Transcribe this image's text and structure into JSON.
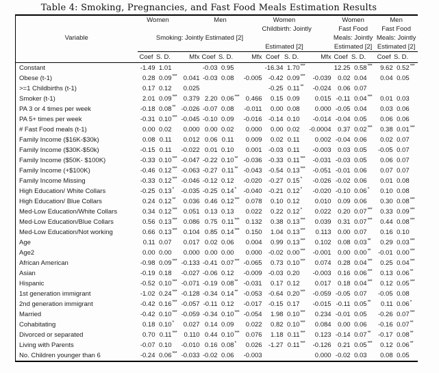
{
  "title": "Table 4: Smoking, Pregnancies, and Fast Food Meals Estimation Results",
  "table": {
    "variable_label": "Variable",
    "group_headers": {
      "women_smoking": "Women",
      "men_smoking": "Men",
      "women_childbirth_line1": "Women",
      "women_childbirth_line2": "Childbirth: Jointly",
      "women_childbirth_line4": "Estimated [2]",
      "smoking_joint": "Smoking: Jointly Estimated [2]",
      "women_ff_line1": "Women",
      "women_ff_line2": "Fast Food",
      "women_ff_line3": "Meals: Jointly",
      "women_ff_line4": "Estimated [2]",
      "men_ff_line1": "Men",
      "men_ff_line2": "Fast Food",
      "men_ff_line3": "Meals: Jointly",
      "men_ff_line4": "Estimated [2]"
    },
    "col_headers": {
      "coef": "Coef",
      "sd": "S. D.",
      "mfx": "Mfx"
    },
    "rows": [
      {
        "label": "Constant",
        "cells": [
          "-1.49",
          "1.01",
          "",
          "",
          "-0.03",
          "0.95",
          "",
          "",
          "-16.34",
          "1.70",
          "***",
          "",
          "12.25",
          "0.58",
          "***",
          "9.62",
          "0.52",
          "***"
        ]
      },
      {
        "label": "Obese (t-1)",
        "cells": [
          "0.28",
          "0.09",
          "***",
          "0.041",
          "-0.03",
          "0.08",
          "",
          "-0.005",
          "-0.42",
          "0.09",
          "***",
          "-0.039",
          "0.02",
          "0.04",
          "",
          "0.04",
          "0.05",
          ""
        ]
      },
      {
        "label": ">=1 Childbirths (t-1)",
        "cells": [
          "0.17",
          "0.12",
          "",
          "0.025",
          "",
          "",
          "",
          "",
          "-0.25",
          "0.11",
          "**",
          "-0.024",
          "0.06",
          "0.07",
          "",
          "",
          "",
          ""
        ]
      },
      {
        "label": "Smoker (t-1)",
        "cells": [
          "2.01",
          "0.09",
          "***",
          "0.379",
          "2.20",
          "0.06",
          "***",
          "0.466",
          "0.15",
          "0.09",
          "",
          "0.015",
          "-0.11",
          "0.04",
          "***",
          "0.01",
          "0.03",
          ""
        ]
      },
      {
        "label": "PA 3 or 4 times per week",
        "cells": [
          "-0.18",
          "0.08",
          "**",
          "-0.026",
          "-0.07",
          "0.08",
          "",
          "-0.011",
          "0.00",
          "0.08",
          "",
          "0.000",
          "-0.05",
          "0.04",
          "",
          "0.03",
          "0.06",
          ""
        ]
      },
      {
        "label": "PA 5+ times per week",
        "cells": [
          "-0.31",
          "0.10",
          "***",
          "-0.045",
          "-0.10",
          "0.09",
          "",
          "-0.016",
          "-0.14",
          "0.10",
          "",
          "-0.014",
          "-0.04",
          "0.05",
          "",
          "0.06",
          "0.06",
          ""
        ]
      },
      {
        "label": "# Fast Food meals (t-1)",
        "cells": [
          "0.00",
          "0.02",
          "",
          "0.000",
          "0.00",
          "0.02",
          "",
          "0.000",
          "0.00",
          "0.02",
          "",
          "-0.0004",
          "0.37",
          "0.02",
          "***",
          "0.38",
          "0.01",
          "***"
        ]
      },
      {
        "label": "Family Income ($16K-$30k)",
        "cells": [
          "0.08",
          "0.11",
          "",
          "0.012",
          "0.06",
          "0.11",
          "",
          "0.009",
          "0.02",
          "0.11",
          "",
          "0.002",
          "-0.04",
          "0.06",
          "",
          "0.02",
          "0.07",
          ""
        ]
      },
      {
        "label": "Family Income ($30K-$50k)",
        "cells": [
          "-0.15",
          "0.11",
          "",
          "-0.022",
          "0.01",
          "0.10",
          "",
          "0.001",
          "-0.03",
          "0.11",
          "",
          "-0.003",
          "0.03",
          "0.05",
          "",
          "-0.05",
          "0.07",
          ""
        ]
      },
      {
        "label": "Family Income ($50K- $100K)",
        "cells": [
          "-0.33",
          "0.10",
          "***",
          "-0.047",
          "-0.22",
          "0.10",
          "**",
          "-0.036",
          "-0.33",
          "0.11",
          "***",
          "-0.031",
          "-0.03",
          "0.05",
          "",
          "0.06",
          "0.07",
          ""
        ]
      },
      {
        "label": "Family Income (+$100K)",
        "cells": [
          "-0.46",
          "0.12",
          "***",
          "-0.063",
          "-0.27",
          "0.11",
          "**",
          "-0.043",
          "-0.54",
          "0.13",
          "***",
          "-0.051",
          "-0.01",
          "0.06",
          "",
          "0.07",
          "0.07",
          ""
        ]
      },
      {
        "label": "Family Income Missing",
        "cells": [
          "-0.33",
          "0.12",
          "***",
          "-0.046",
          "-0.12",
          "0.12",
          "",
          "-0.020",
          "-0.27",
          "0.15",
          "*",
          "-0.026",
          "-0.02",
          "0.06",
          "",
          "0.01",
          "0.08",
          ""
        ]
      },
      {
        "label": "High Education/ White Collars",
        "cells": [
          "-0.25",
          "0.13",
          "*",
          "-0.035",
          "-0.25",
          "0.14",
          "*",
          "-0.040",
          "-0.21",
          "0.12",
          "*",
          "-0.020",
          "-0.10",
          "0.06",
          "*",
          "0.10",
          "0.08",
          ""
        ]
      },
      {
        "label": "High Education/ Blue Collars",
        "cells": [
          "0.24",
          "0.12",
          "**",
          "0.036",
          "0.46",
          "0.12",
          "***",
          "0.078",
          "0.10",
          "0.12",
          "",
          "0.010",
          "0.09",
          "0.06",
          "",
          "0.30",
          "0.08",
          "***"
        ]
      },
      {
        "label": "Med-Low Education/White Collars",
        "cells": [
          "0.34",
          "0.12",
          "***",
          "0.051",
          "0.13",
          "0.13",
          "",
          "0.022",
          "0.22",
          "0.12",
          "*",
          "0.022",
          "0.20",
          "0.07",
          "***",
          "0.33",
          "0.09",
          "***"
        ]
      },
      {
        "label": "Med-Low Education/Blue Collars",
        "cells": [
          "0.56",
          "0.13",
          "***",
          "0.086",
          "0.75",
          "0.11",
          "***",
          "0.132",
          "0.38",
          "0.13",
          "***",
          "0.039",
          "0.31",
          "0.07",
          "***",
          "0.44",
          "0.08",
          "***"
        ]
      },
      {
        "label": "Med-Low Education/Not working",
        "cells": [
          "0.66",
          "0.13",
          "***",
          "0.104",
          "0.85",
          "0.14",
          "***",
          "0.150",
          "1.04",
          "0.13",
          "***",
          "0.113",
          "0.00",
          "0.07",
          "",
          "0.16",
          "0.10",
          ""
        ]
      },
      {
        "label": "Age",
        "cells": [
          "0.11",
          "0.07",
          "",
          "0.017",
          "0.02",
          "0.06",
          "",
          "0.004",
          "0.99",
          "0.13",
          "***",
          "0.102",
          "0.08",
          "0.03",
          "**",
          "0.29",
          "0.03",
          "***"
        ]
      },
      {
        "label": "Age2",
        "cells": [
          "0.00",
          "0.00",
          "",
          "0.000",
          "0.00",
          "0.00",
          "",
          "0.000",
          "-0.02",
          "0.00",
          "***",
          "-0.001",
          "0.00",
          "0.00",
          "**",
          "-0.01",
          "0.00",
          "***"
        ]
      },
      {
        "label": "African American",
        "cells": [
          "-0.98",
          "0.09",
          "***",
          "-0.133",
          "-0.41",
          "0.07",
          "***",
          "-0.065",
          "0.73",
          "0.10",
          "***",
          "0.074",
          "0.28",
          "0.04",
          "***",
          "0.25",
          "0.04",
          "***"
        ]
      },
      {
        "label": "Asian",
        "cells": [
          "-0.19",
          "0.18",
          "",
          "-0.027",
          "-0.06",
          "0.12",
          "",
          "-0.009",
          "-0.03",
          "0.20",
          "",
          "-0.003",
          "0.16",
          "0.06",
          "***",
          "0.13",
          "0.06",
          "**"
        ]
      },
      {
        "label": "Hispanic",
        "cells": [
          "-0.52",
          "0.10",
          "***",
          "-0.071",
          "-0.19",
          "0.08",
          "**",
          "-0.031",
          "0.17",
          "0.12",
          "",
          "0.017",
          "0.18",
          "0.04",
          "***",
          "0.12",
          "0.05",
          "***"
        ]
      },
      {
        "label": "1st generation immigrant",
        "cells": [
          "-1.02",
          "0.24",
          "***",
          "-0.128",
          "-0.34",
          "0.14",
          "**",
          "-0.053",
          "-0.64",
          "0.20",
          "***",
          "-0.059",
          "-0.05",
          "0.07",
          "",
          "-0.05",
          "0.08",
          ""
        ]
      },
      {
        "label": "2nd generation immigrant",
        "cells": [
          "-0.42",
          "0.16",
          "***",
          "-0.057",
          "-0.11",
          "0.12",
          "",
          "-0.017",
          "-0.15",
          "0.17",
          "",
          "-0.015",
          "-0.11",
          "0.05",
          "**",
          "0.11",
          "0.06",
          "*"
        ]
      },
      {
        "label": "Married",
        "cells": [
          "-0.42",
          "0.10",
          "***",
          "-0.059",
          "-0.34",
          "0.10",
          "***",
          "-0.054",
          "1.98",
          "0.10",
          "***",
          "0.234",
          "-0.01",
          "0.05",
          "",
          "-0.26",
          "0.07",
          "***"
        ]
      },
      {
        "label": "Cohabitating",
        "cells": [
          "0.18",
          "0.10",
          "*",
          "0.027",
          "0.14",
          "0.09",
          "",
          "0.022",
          "0.82",
          "0.10",
          "***",
          "0.084",
          "0.00",
          "0.06",
          "",
          "-0.16",
          "0.07",
          "**"
        ]
      },
      {
        "label": "Divorced or separated",
        "cells": [
          "0.70",
          "0.11",
          "***",
          "0.110",
          "0.44",
          "0.10",
          "***",
          "0.076",
          "1.18",
          "0.11",
          "***",
          "0.123",
          "-0.14",
          "0.07",
          "**",
          "-0.17",
          "0.08",
          "**"
        ]
      },
      {
        "label": "Living with Parents",
        "cells": [
          "-0.07",
          "0.10",
          "",
          "-0.010",
          "0.16",
          "0.08",
          "*",
          "0.026",
          "-1.27",
          "0.11",
          "***",
          "-0.126",
          "0.21",
          "0.05",
          "***",
          "0.12",
          "0.06",
          "**"
        ]
      },
      {
        "label": "No. Children younger than 6",
        "cells": [
          "-0.24",
          "0.06",
          "***",
          "-0.033",
          "-0.02",
          "0.06",
          "",
          "-0.003",
          "",
          "",
          "",
          "0.000",
          "-0.02",
          "0.03",
          "",
          "0.08",
          "0.05",
          ""
        ]
      }
    ]
  }
}
